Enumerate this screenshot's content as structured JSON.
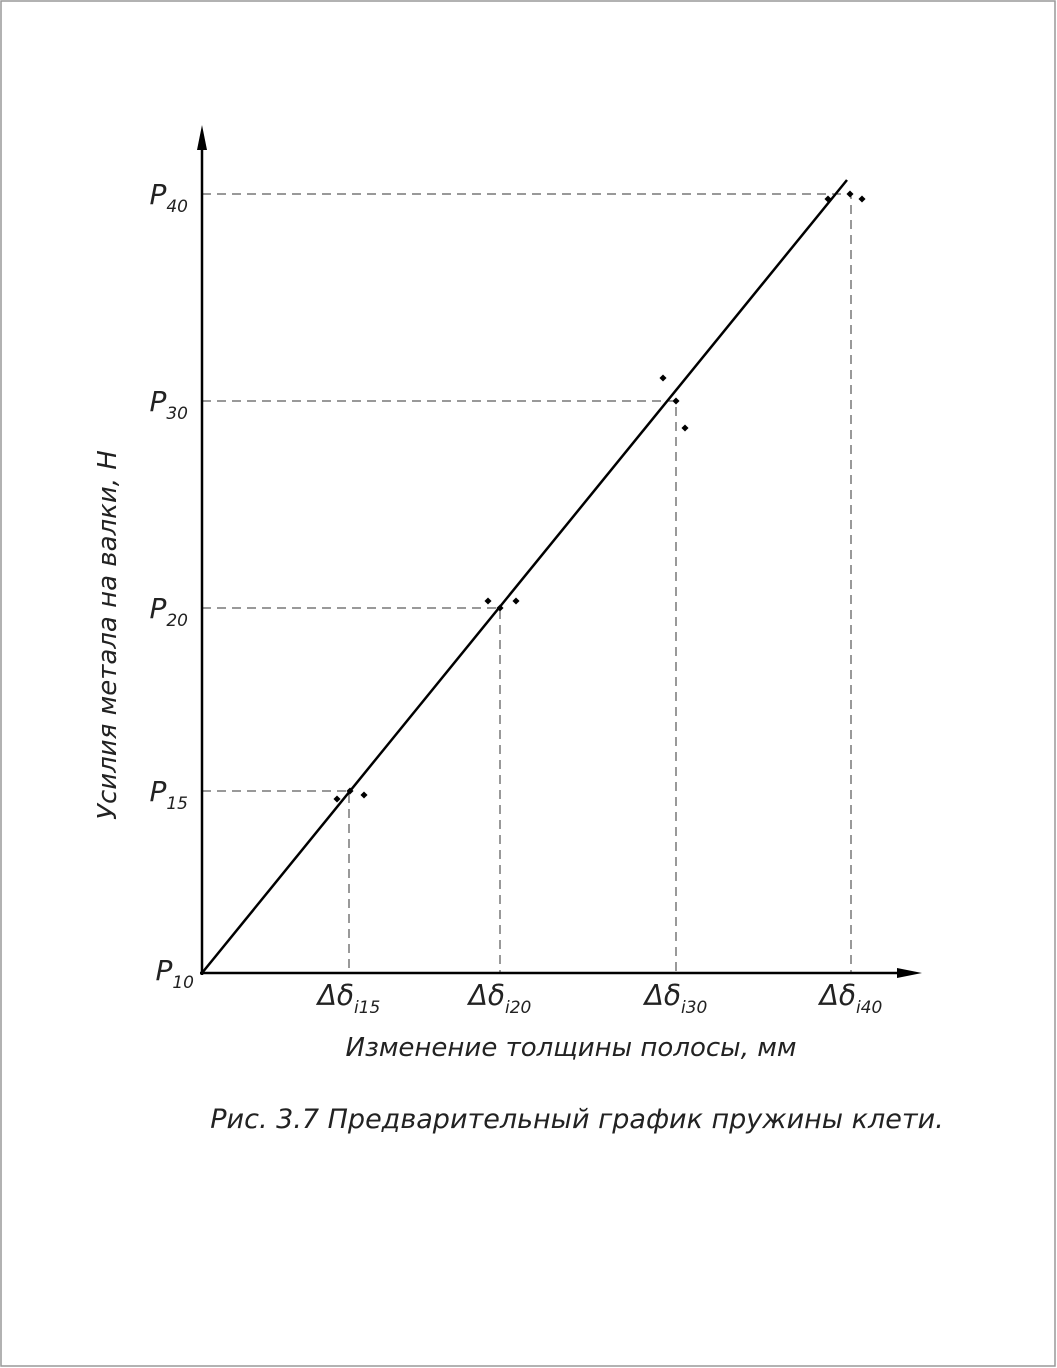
{
  "y_axis": {
    "label": "Усилия метала на валки, Н",
    "ticks": [
      {
        "base": "P",
        "sub": "40"
      },
      {
        "base": "P",
        "sub": "30"
      },
      {
        "base": "P",
        "sub": "20"
      },
      {
        "base": "P",
        "sub": "15"
      },
      {
        "base": "P",
        "sub": "10"
      }
    ]
  },
  "x_axis": {
    "label": "Изменение толщины полосы, мм",
    "ticks": [
      {
        "base": "Δδ",
        "sub": "i15"
      },
      {
        "base": "Δδ",
        "sub": "i20"
      },
      {
        "base": "Δδ",
        "sub": "i30"
      },
      {
        "base": "Δδ",
        "sub": "i40"
      }
    ]
  },
  "caption": "Рис. 3.7 Предварительный график пружины клети."
}
